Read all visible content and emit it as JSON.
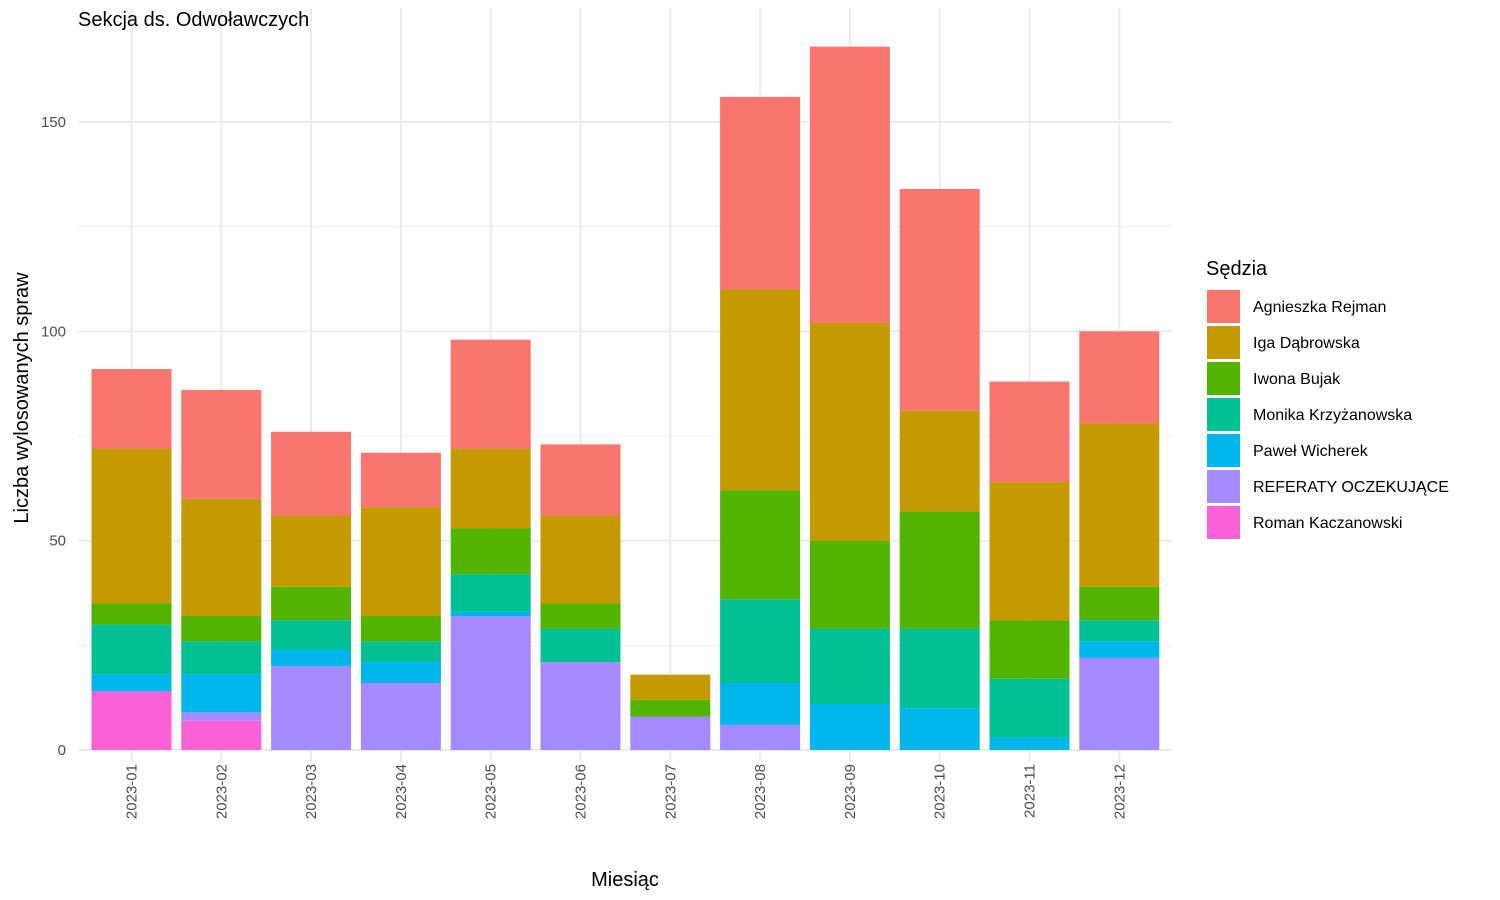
{
  "chart_data": {
    "type": "bar",
    "stacked": true,
    "title": "Sekcja ds. Odwoławczych",
    "xlabel": "Miesiąc",
    "ylabel": "Liczba wylosowanych spraw",
    "ylim": [
      0,
      170
    ],
    "yticks": [
      0,
      50,
      100,
      150
    ],
    "grid": true,
    "legend_position": "right",
    "legend_title": "Sędzia",
    "categories": [
      "2023-01",
      "2023-02",
      "2023-03",
      "2023-04",
      "2023-05",
      "2023-06",
      "2023-07",
      "2023-08",
      "2023-09",
      "2023-10",
      "2023-11",
      "2023-12"
    ],
    "series": [
      {
        "name": "Agnieszka Rejman",
        "color": "#F8766D",
        "values": [
          19,
          26,
          20,
          13,
          26,
          17,
          0,
          46,
          66,
          53,
          24,
          22
        ]
      },
      {
        "name": "Iga Dąbrowska",
        "color": "#C49A00",
        "values": [
          37,
          28,
          17,
          26,
          19,
          21,
          6,
          48,
          52,
          24,
          33,
          39
        ]
      },
      {
        "name": "Iwona Bujak",
        "color": "#53B400",
        "values": [
          5,
          6,
          8,
          6,
          11,
          6,
          4,
          26,
          21,
          28,
          14,
          8
        ]
      },
      {
        "name": "Monika Krzyżanowska",
        "color": "#00C094",
        "values": [
          12,
          8,
          7,
          5,
          9,
          8,
          0,
          20,
          18,
          19,
          14,
          5
        ]
      },
      {
        "name": "Paweł Wicherek",
        "color": "#00B6EB",
        "values": [
          4,
          9,
          4,
          5,
          1,
          0,
          0,
          10,
          11,
          10,
          3,
          4
        ]
      },
      {
        "name": "REFERATY OCZEKUJĄCE",
        "color": "#A58AFF",
        "values": [
          0,
          2,
          20,
          16,
          32,
          21,
          8,
          6,
          0,
          0,
          0,
          22
        ]
      },
      {
        "name": "Roman Kaczanowski",
        "color": "#FB61D7",
        "values": [
          14,
          7,
          0,
          0,
          0,
          0,
          0,
          0,
          0,
          0,
          0,
          0
        ]
      }
    ]
  }
}
